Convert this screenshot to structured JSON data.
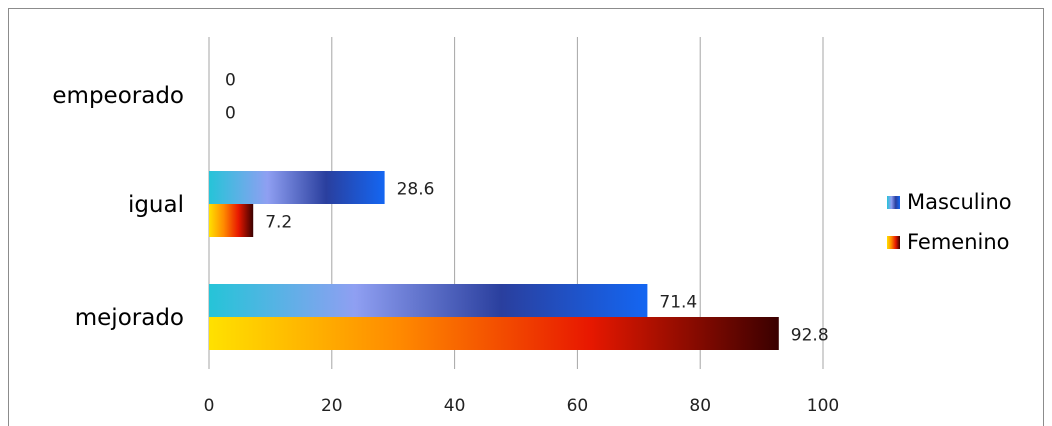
{
  "chart_data": {
    "type": "bar",
    "orientation": "horizontal",
    "categories": [
      "empeorado",
      "igual",
      "mejorado"
    ],
    "series": [
      {
        "name": "Masculino",
        "values": [
          0,
          28.6,
          71.4
        ],
        "labels": [
          "0",
          "28.6",
          "71.4"
        ],
        "colors": [
          "#25c4d8",
          "#8f9ff2",
          "#2a3f9e",
          "#1466f2"
        ]
      },
      {
        "name": "Femenino",
        "values": [
          0,
          7.2,
          92.8
        ],
        "labels": [
          "0",
          "7.2",
          "92.8"
        ],
        "colors": [
          "#ffe100",
          "#ff8a00",
          "#e81800",
          "#3a0000"
        ]
      }
    ],
    "xlim": [
      0,
      100
    ],
    "xticks": [
      "0",
      "20",
      "40",
      "60",
      "80",
      "100"
    ],
    "grid": true,
    "legend_position": "right"
  }
}
